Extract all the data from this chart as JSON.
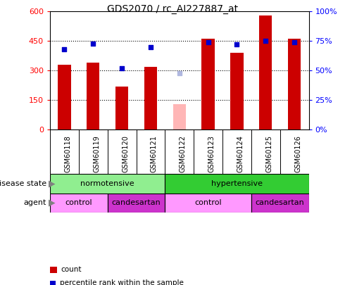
{
  "title": "GDS2070 / rc_AI227887_at",
  "samples": [
    "GSM60118",
    "GSM60119",
    "GSM60120",
    "GSM60121",
    "GSM60122",
    "GSM60123",
    "GSM60124",
    "GSM60125",
    "GSM60126"
  ],
  "counts": [
    330,
    340,
    220,
    320,
    null,
    460,
    390,
    580,
    460
  ],
  "count_absent": [
    null,
    null,
    null,
    null,
    130,
    null,
    null,
    null,
    null
  ],
  "percentile_ranks": [
    68,
    73,
    52,
    70,
    null,
    74,
    72,
    75,
    74
  ],
  "rank_absent": [
    null,
    null,
    null,
    null,
    48,
    null,
    null,
    null,
    null
  ],
  "ylim_left": [
    0,
    600
  ],
  "ylim_right": [
    0,
    100
  ],
  "yticks_left": [
    0,
    150,
    300,
    450,
    600
  ],
  "yticks_right": [
    0,
    25,
    50,
    75,
    100
  ],
  "ytick_labels_left": [
    "0",
    "150",
    "300",
    "450",
    "600"
  ],
  "ytick_labels_right": [
    "0%",
    "25%",
    "50%",
    "75%",
    "100%"
  ],
  "bar_width": 0.45,
  "bar_color_present": "#cc0000",
  "bar_color_absent": "#ffb6b6",
  "dot_color_present": "#0000cc",
  "dot_color_absent": "#b0b8e0",
  "normotensive_color": "#90ee90",
  "hypertensive_color": "#33cc33",
  "control_color": "#ff99ff",
  "candesartan_color": "#cc33cc",
  "xtick_bg": "#d3d3d3"
}
